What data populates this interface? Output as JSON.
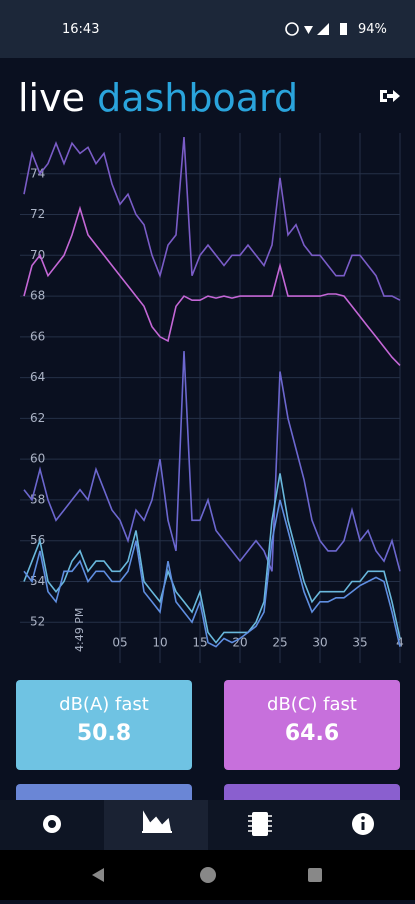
{
  "status_bar": {
    "time": "16:43",
    "battery": "94%"
  },
  "header": {
    "title_1": "live",
    "title_2": "dashboard"
  },
  "chart_data": {
    "type": "line",
    "x": [
      -7,
      -6,
      -5,
      -4,
      -3,
      -2,
      -1,
      0,
      1,
      2,
      3,
      4,
      5,
      6,
      7,
      8,
      9,
      10,
      11,
      12,
      13,
      14,
      15,
      16,
      17,
      18,
      19,
      20,
      21,
      22,
      23,
      24,
      25,
      26,
      27,
      28,
      29,
      30,
      31,
      32,
      33,
      34,
      35,
      36,
      37,
      38,
      39,
      40
    ],
    "xlim": [
      -7.5,
      40
    ],
    "xticks": [
      {
        "value": 5,
        "label": "05"
      },
      10,
      15,
      20,
      25,
      30,
      35,
      {
        "value": 40,
        "label": "4"
      }
    ],
    "ylim": [
      50,
      76
    ],
    "yticks": [
      52,
      54,
      56,
      58,
      60,
      62,
      64,
      66,
      68,
      70,
      72,
      74
    ],
    "grid": true,
    "time_label": "4:49 PM",
    "series": [
      {
        "color": "#7a5cc7",
        "values": [
          73,
          75,
          74,
          74.5,
          75.5,
          74.5,
          75.5,
          75,
          75.3,
          74.5,
          75,
          73.5,
          72.5,
          73,
          72,
          71.5,
          70,
          69,
          70.5,
          71,
          75.8,
          69,
          70,
          70.5,
          70,
          69.5,
          70,
          70,
          70.5,
          70,
          69.5,
          70.5,
          73.8,
          71,
          71.5,
          70.5,
          70,
          70,
          69.5,
          69,
          69,
          70,
          70,
          69.5,
          69,
          68,
          68,
          67.8
        ]
      },
      {
        "color": "#c467d6",
        "values": [
          68,
          69.5,
          70,
          69,
          69.5,
          70,
          71,
          72.3,
          71,
          70.5,
          70,
          69.5,
          69,
          68.5,
          68,
          67.5,
          66.5,
          66,
          65.8,
          67.5,
          68,
          67.8,
          67.8,
          68,
          67.9,
          68,
          67.9,
          68,
          68,
          68,
          68,
          68,
          69.5,
          68,
          68,
          68,
          68,
          68,
          68.1,
          68.1,
          68,
          67.5,
          67,
          66.5,
          66,
          65.5,
          65,
          64.6
        ]
      },
      {
        "color": "#6c67cf",
        "values": [
          58.5,
          58,
          59.5,
          58,
          57,
          57.5,
          58,
          58.5,
          58,
          59.5,
          58.5,
          57.5,
          57,
          56,
          57.5,
          57,
          58,
          60,
          57,
          55.5,
          65.3,
          57,
          57,
          58,
          56.5,
          56,
          55.5,
          55,
          55.5,
          56,
          55.5,
          54.5,
          64.3,
          62,
          60.5,
          59,
          57,
          56,
          55.5,
          55.5,
          56,
          57.5,
          56,
          56.5,
          55.5,
          55,
          56,
          54.5
        ]
      },
      {
        "color": "#69b8dc",
        "values": [
          54,
          55,
          56,
          54,
          53.5,
          54,
          55,
          55.5,
          54.5,
          55,
          55,
          54.5,
          54.5,
          55,
          56.5,
          54,
          53.5,
          53,
          54.5,
          53.5,
          53,
          52.5,
          53.5,
          51.5,
          51,
          51.5,
          51.5,
          51.5,
          51.5,
          52,
          53,
          57,
          59.3,
          57,
          55.5,
          54,
          53,
          53.5,
          53.5,
          53.5,
          53.5,
          54,
          54,
          54.5,
          54.5,
          54.5,
          53,
          51.2
        ]
      },
      {
        "color": "#5f8ee0",
        "values": [
          54.5,
          54,
          55.5,
          53.5,
          53,
          54.5,
          54.5,
          55,
          54,
          54.5,
          54.5,
          54,
          54,
          54.5,
          56,
          53.5,
          53,
          52.5,
          55,
          53,
          52.5,
          52,
          53,
          51,
          50.8,
          51.2,
          51,
          51.2,
          51.5,
          51.8,
          52.5,
          56,
          58,
          56.5,
          55,
          53.5,
          52.5,
          53,
          53,
          53.2,
          53.2,
          53.5,
          53.8,
          54,
          54.2,
          54,
          52.5,
          50.8
        ]
      }
    ]
  },
  "cards": [
    {
      "label": "dB(A) fast",
      "value": 50.8
    },
    {
      "label": "dB(C) fast",
      "value": 64.6
    }
  ]
}
